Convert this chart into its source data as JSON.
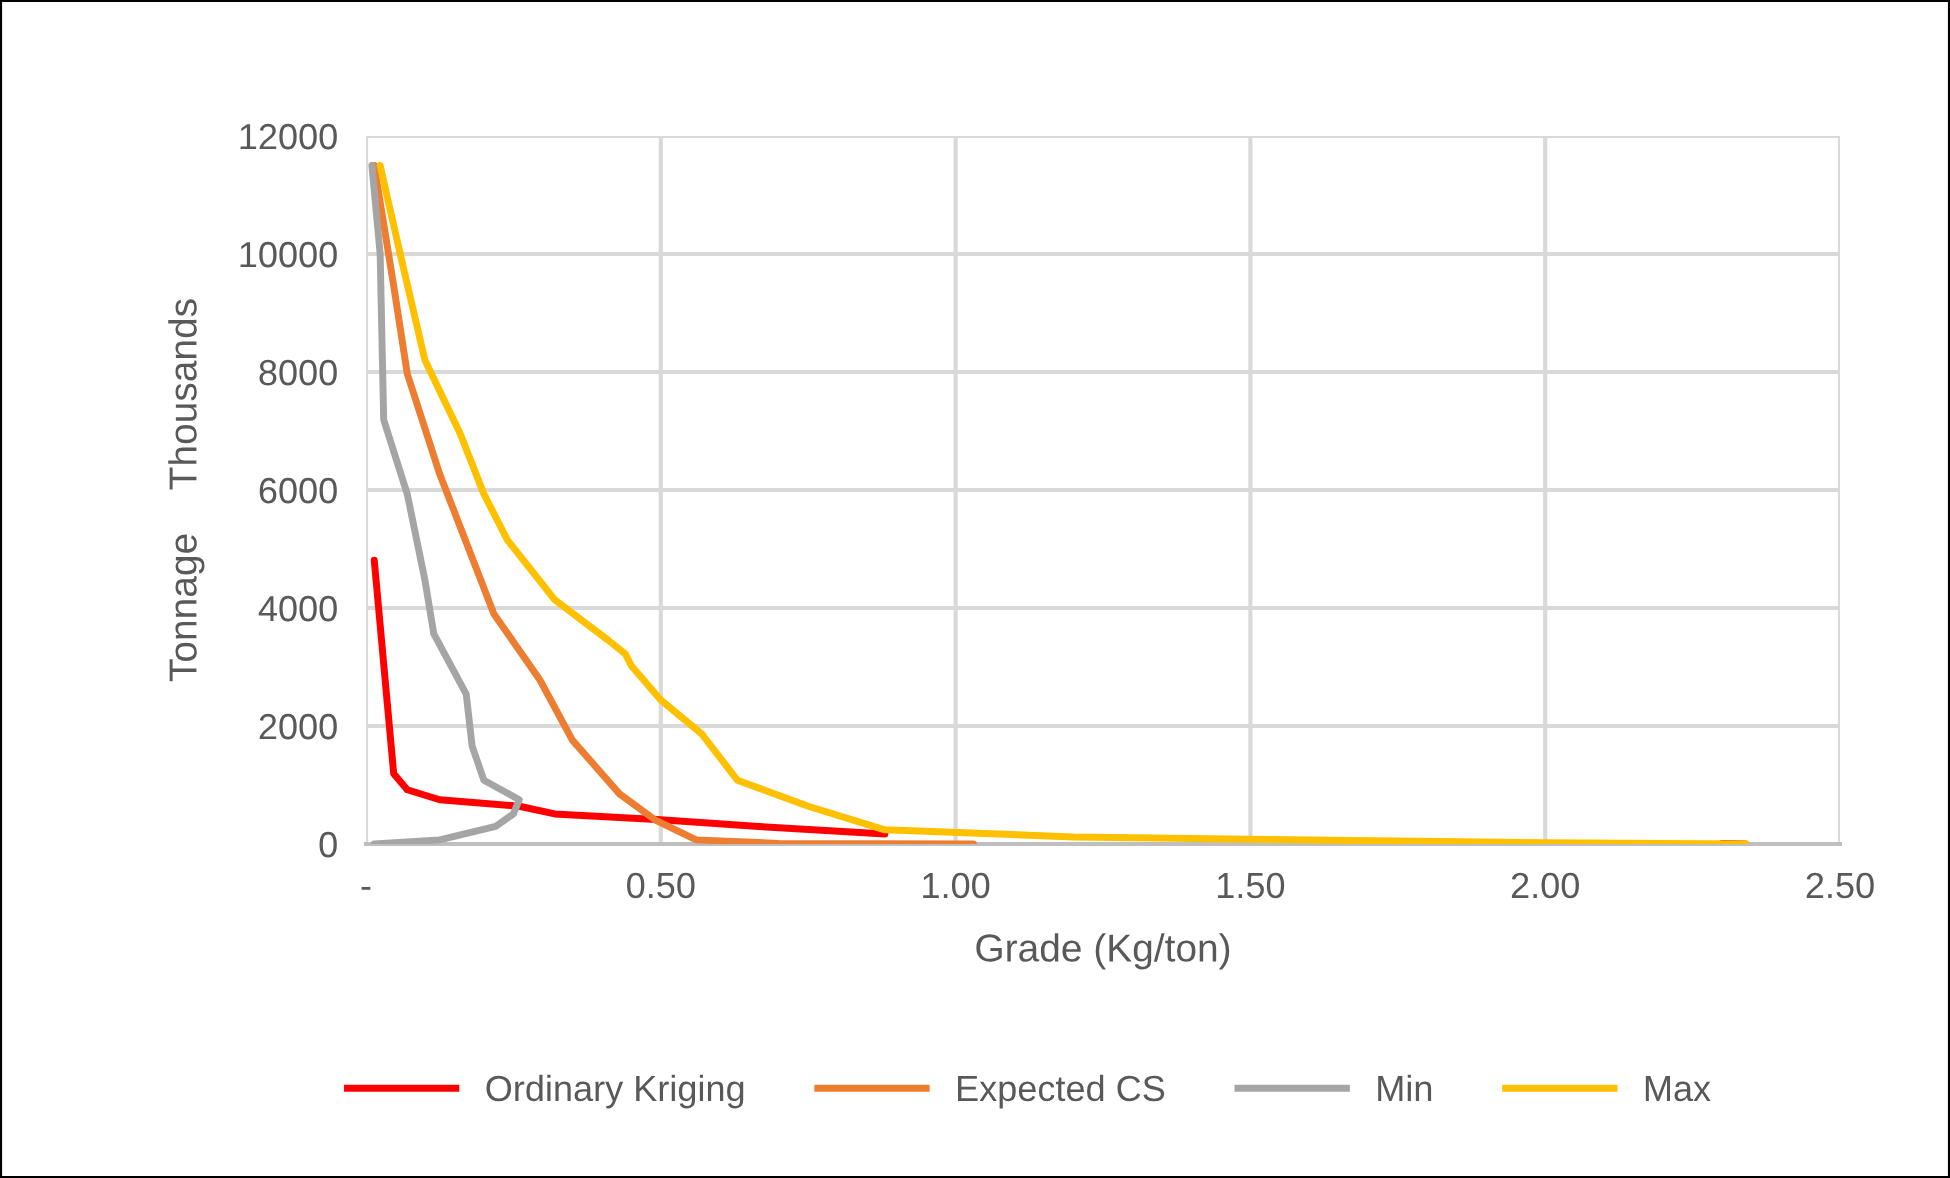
{
  "chart_data": {
    "type": "line",
    "xlabel": "Grade (Kg/ton)",
    "ylabel": "Tonnage    Thousands",
    "xlim": [
      0,
      2.5
    ],
    "ylim": [
      0,
      12000
    ],
    "xticks": [
      {
        "value": 0,
        "label": "-"
      },
      {
        "value": 0.5,
        "label": "0.50"
      },
      {
        "value": 1.0,
        "label": "1.00"
      },
      {
        "value": 1.5,
        "label": "1.50"
      },
      {
        "value": 2.0,
        "label": "2.00"
      },
      {
        "value": 2.5,
        "label": "2.50"
      }
    ],
    "yticks": [
      0,
      2000,
      4000,
      6000,
      8000,
      10000,
      12000
    ],
    "grid": true,
    "legend": "bottom",
    "marker": "none",
    "line_style": "solid",
    "series": [
      {
        "name": "Ordinary Kriging",
        "color": "#ff0000",
        "x": [
          0.014,
          0.047,
          0.07,
          0.125,
          0.26,
          0.32,
          0.5,
          0.66,
          0.88,
          1.2,
          1.5,
          1.8,
          2.3,
          2.34
        ],
        "values": [
          4810,
          1190,
          920,
          750,
          640,
          510,
          410,
          300,
          170,
          null,
          null,
          null,
          10,
          0
        ]
      },
      {
        "name": "Expected CS",
        "color": "#ed7d31",
        "x": [
          0.014,
          0.047,
          0.07,
          0.125,
          0.217,
          0.295,
          0.35,
          0.43,
          0.49,
          0.56,
          0.7,
          1.03
        ],
        "values": [
          11500,
          9460,
          7970,
          6270,
          3900,
          2780,
          1760,
          850,
          410,
          70,
          10,
          0
        ]
      },
      {
        "name": "Min",
        "color": "#a5a5a5",
        "x": [
          0.01,
          0.024,
          0.03,
          0.07,
          0.1,
          0.115,
          0.17,
          0.18,
          0.2,
          0.26,
          0.25,
          0.22,
          0.125,
          0.014
        ],
        "values": [
          11500,
          10000,
          7190,
          5930,
          4470,
          3560,
          2540,
          1660,
          1080,
          750,
          510,
          300,
          70,
          0
        ]
      },
      {
        "name": "Max",
        "color": "#ffc000",
        "x": [
          0.024,
          0.058,
          0.1,
          0.16,
          0.2,
          0.24,
          0.32,
          0.41,
          0.44,
          0.45,
          0.5,
          0.57,
          0.63,
          0.75,
          0.88,
          1.2,
          1.5,
          2.0,
          2.34
        ],
        "values": [
          11500,
          10000,
          8200,
          6950,
          5930,
          5150,
          4140,
          3460,
          3220,
          3020,
          2440,
          1860,
          1080,
          640,
          240,
          120,
          80,
          20,
          0
        ]
      }
    ]
  }
}
